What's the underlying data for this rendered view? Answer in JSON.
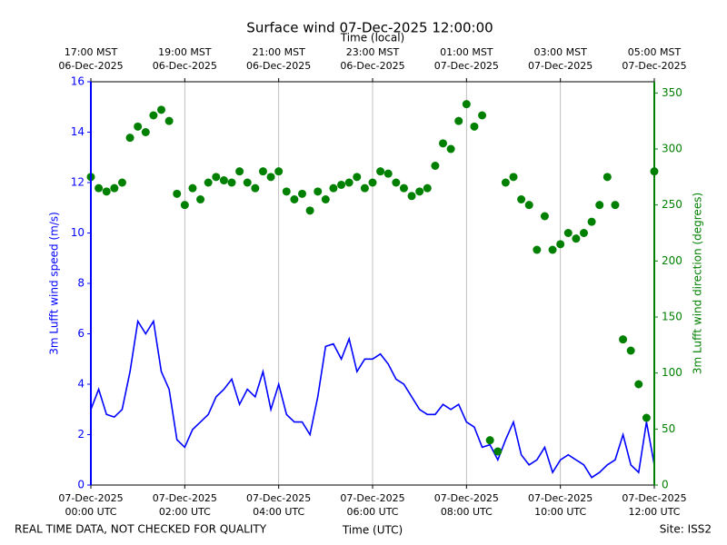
{
  "chart_data": {
    "type": "line",
    "title": "Surface wind 07-Dec-2025 12:00:00",
    "x_label": "Time (UTC)",
    "x2_label": "Time (local)",
    "y_label": "3m Lufft wind speed (m/s)",
    "y2_label": "3m Lufft wind direction (degrees)",
    "footer_left": "REAL TIME DATA, NOT CHECKED FOR QUALITY",
    "footer_right": "Site: ISS2",
    "grid": "x",
    "xlim": [
      "2025-12-07 00:00",
      "2025-12-07 12:00"
    ],
    "xticks": [
      {
        "value": "2025-12-07 00:00",
        "label": "07-Dec-2025\n00:00 UTC"
      },
      {
        "value": "2025-12-07 02:00",
        "label": "07-Dec-2025\n02:00 UTC"
      },
      {
        "value": "2025-12-07 04:00",
        "label": "07-Dec-2025\n04:00 UTC"
      },
      {
        "value": "2025-12-07 06:00",
        "label": "07-Dec-2025\n06:00 UTC"
      },
      {
        "value": "2025-12-07 08:00",
        "label": "07-Dec-2025\n08:00 UTC"
      },
      {
        "value": "2025-12-07 10:00",
        "label": "07-Dec-2025\n10:00 UTC"
      },
      {
        "value": "2025-12-07 12:00",
        "label": "07-Dec-2025\n12:00 UTC"
      }
    ],
    "x2ticks": [
      {
        "value": "2025-12-07 00:00",
        "label": "17:00 MST\n06-Dec-2025"
      },
      {
        "value": "2025-12-07 02:00",
        "label": "19:00 MST\n06-Dec-2025"
      },
      {
        "value": "2025-12-07 04:00",
        "label": "21:00 MST\n06-Dec-2025"
      },
      {
        "value": "2025-12-07 06:00",
        "label": "23:00 MST\n06-Dec-2025"
      },
      {
        "value": "2025-12-07 08:00",
        "label": "01:00 MST\n07-Dec-2025"
      },
      {
        "value": "2025-12-07 10:00",
        "label": "03:00 MST\n07-Dec-2025"
      },
      {
        "value": "2025-12-07 12:00",
        "label": "05:00 MST\n07-Dec-2025"
      }
    ],
    "ylim": [
      0,
      16
    ],
    "yticks": [
      0,
      2,
      4,
      6,
      8,
      10,
      12,
      14,
      16
    ],
    "y2lim": [
      0,
      360
    ],
    "y2ticks": [
      0,
      50,
      100,
      150,
      200,
      250,
      300,
      350
    ],
    "x": [
      "2025-12-07 00:00",
      "2025-12-07 00:10",
      "2025-12-07 00:20",
      "2025-12-07 00:30",
      "2025-12-07 00:40",
      "2025-12-07 00:50",
      "2025-12-07 01:00",
      "2025-12-07 01:10",
      "2025-12-07 01:20",
      "2025-12-07 01:30",
      "2025-12-07 01:40",
      "2025-12-07 01:50",
      "2025-12-07 02:00",
      "2025-12-07 02:10",
      "2025-12-07 02:20",
      "2025-12-07 02:30",
      "2025-12-07 02:40",
      "2025-12-07 02:50",
      "2025-12-07 03:00",
      "2025-12-07 03:10",
      "2025-12-07 03:20",
      "2025-12-07 03:30",
      "2025-12-07 03:40",
      "2025-12-07 03:50",
      "2025-12-07 04:00",
      "2025-12-07 04:10",
      "2025-12-07 04:20",
      "2025-12-07 04:30",
      "2025-12-07 04:40",
      "2025-12-07 04:50",
      "2025-12-07 05:00",
      "2025-12-07 05:10",
      "2025-12-07 05:20",
      "2025-12-07 05:30",
      "2025-12-07 05:40",
      "2025-12-07 05:50",
      "2025-12-07 06:00",
      "2025-12-07 06:10",
      "2025-12-07 06:20",
      "2025-12-07 06:30",
      "2025-12-07 06:40",
      "2025-12-07 06:50",
      "2025-12-07 07:00",
      "2025-12-07 07:10",
      "2025-12-07 07:20",
      "2025-12-07 07:30",
      "2025-12-07 07:40",
      "2025-12-07 07:50",
      "2025-12-07 08:00",
      "2025-12-07 08:10",
      "2025-12-07 08:20",
      "2025-12-07 08:30",
      "2025-12-07 08:40",
      "2025-12-07 08:50",
      "2025-12-07 09:00",
      "2025-12-07 09:10",
      "2025-12-07 09:20",
      "2025-12-07 09:30",
      "2025-12-07 09:40",
      "2025-12-07 09:50",
      "2025-12-07 10:00",
      "2025-12-07 10:10",
      "2025-12-07 10:20",
      "2025-12-07 10:30",
      "2025-12-07 10:40",
      "2025-12-07 10:50",
      "2025-12-07 11:00",
      "2025-12-07 11:10",
      "2025-12-07 11:20",
      "2025-12-07 11:30",
      "2025-12-07 11:40",
      "2025-12-07 11:50",
      "2025-12-07 12:00"
    ],
    "series": [
      {
        "name": "3m Lufft wind speed",
        "type": "line",
        "color": "#0000ff",
        "axis": "y",
        "values": [
          3.0,
          3.8,
          2.8,
          2.7,
          3.0,
          4.5,
          6.5,
          6.0,
          6.5,
          4.5,
          3.8,
          1.8,
          1.5,
          2.2,
          2.5,
          2.8,
          3.5,
          3.8,
          4.2,
          3.2,
          3.8,
          3.5,
          4.5,
          3.0,
          4.0,
          2.8,
          2.5,
          2.5,
          2.0,
          3.5,
          5.5,
          5.6,
          5.0,
          5.8,
          4.5,
          5.0,
          5.0,
          5.2,
          4.8,
          4.2,
          4.0,
          3.5,
          3.0,
          2.8,
          2.8,
          3.2,
          3.0,
          3.2,
          2.5,
          2.3,
          1.5,
          1.6,
          1.0,
          1.8,
          2.5,
          1.2,
          0.8,
          1.0,
          1.5,
          0.5,
          1.0,
          1.2,
          1.0,
          0.8,
          0.3,
          0.5,
          0.8,
          1.0,
          2.0,
          0.8,
          0.5,
          2.5,
          0.8
        ]
      },
      {
        "name": "3m Lufft wind direction",
        "type": "scatter",
        "color": "#008000",
        "axis": "y2",
        "values": [
          275,
          265,
          262,
          265,
          270,
          310,
          320,
          315,
          330,
          335,
          325,
          260,
          250,
          265,
          255,
          270,
          275,
          272,
          270,
          280,
          270,
          265,
          280,
          275,
          280,
          262,
          255,
          260,
          245,
          262,
          255,
          265,
          268,
          270,
          275,
          265,
          270,
          280,
          278,
          270,
          265,
          258,
          262,
          265,
          285,
          305,
          300,
          325,
          340,
          320,
          330,
          40,
          30,
          270,
          275,
          255,
          250,
          210,
          240,
          210,
          215,
          225,
          220,
          225,
          235,
          250,
          275,
          250,
          130,
          120,
          90,
          60,
          280
        ]
      }
    ]
  }
}
